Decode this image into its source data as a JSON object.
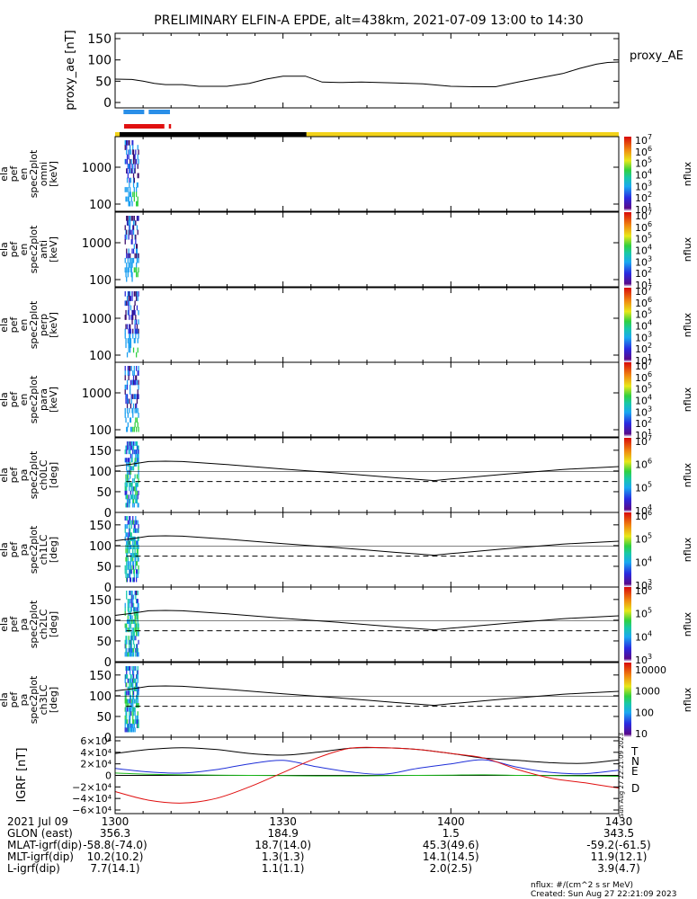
{
  "title": "PRELIMINARY ELFIN-A EPDE, alt=438km, 2021-07-09 13:00 to 14:30",
  "colors": {
    "day": "#f2d21a",
    "night": "#000000",
    "ibo_blue": "#2a8fe8",
    "ibo_red": "#e01010",
    "igrf_T": "#000000",
    "igrf_N": "#1f2fd8",
    "igrf_E": "#18b818",
    "igrf_D": "#e01010"
  },
  "colorbar_unit": "nflux",
  "footer": {
    "note1": "nflux: #/(cm^2 s sr MeV)",
    "note2": "Created: Sun Aug 27 22:21:09 2023",
    "vertical_stamp": "Sun Aug 27 22:21:09 2023"
  },
  "time_axis": {
    "ticks": [
      "1300",
      "1330",
      "1400",
      "1430"
    ],
    "rows": [
      {
        "label": "2021 Jul 09",
        "values": [
          "",
          "",
          "",
          ""
        ]
      },
      {
        "label": "GLON (east)",
        "values": [
          "356.3",
          "184.9",
          "1.5",
          "343.5"
        ]
      },
      {
        "label": "MLAT-igrf(dip)",
        "values": [
          "-58.8(-74.0)",
          "18.7(14.0)",
          "45.3(49.6)",
          "-59.2(-61.5)"
        ]
      },
      {
        "label": "MLT-igrf(dip)",
        "values": [
          "10.2(10.2)",
          "1.3(1.3)",
          "14.1(14.5)",
          "11.9(12.1)"
        ]
      },
      {
        "label": "L-igrf(dip)",
        "values": [
          "7.7(14.1)",
          "1.1(1.1)",
          "2.0(2.5)",
          "3.9(4.7)"
        ]
      }
    ]
  },
  "chart_data": [
    {
      "type": "line",
      "ylabel": "proxy_ae [nT]",
      "legend": "proxy_AE",
      "x_range_min": [
        0,
        90
      ],
      "ylim": [
        0,
        150
      ],
      "yticks": [
        "0",
        "50",
        "100",
        "150"
      ],
      "x_min": [
        0,
        3,
        5,
        7,
        9,
        12,
        15,
        20,
        24,
        27,
        30,
        34,
        37,
        40,
        44,
        50,
        55,
        60,
        64,
        68,
        72,
        76,
        80,
        83,
        86,
        88,
        90
      ],
      "y_nT": [
        55,
        54,
        50,
        45,
        42,
        42,
        38,
        38,
        45,
        55,
        62,
        62,
        48,
        47,
        48,
        46,
        44,
        38,
        37,
        37,
        48,
        58,
        68,
        80,
        90,
        94,
        95
      ]
    },
    {
      "type": "bar",
      "name": "ibo/obo indicators and day-night bar",
      "segments_min": [
        {
          "kind": "blue",
          "start": 1.5,
          "end": 5.2
        },
        {
          "kind": "blue",
          "start": 6.0,
          "end": 9.8
        },
        {
          "kind": "red",
          "start": 1.6,
          "end": 8.8
        },
        {
          "kind": "red",
          "start": 9.6,
          "end": 10.0
        },
        {
          "kind": "day",
          "start": 0,
          "end": 0.8
        },
        {
          "kind": "night",
          "start": 0.8,
          "end": 34.2
        },
        {
          "kind": "day",
          "start": 34.2,
          "end": 90
        }
      ]
    },
    {
      "type": "heatmap",
      "panels": [
        {
          "labels": [
            "ela",
            "pef",
            "en",
            "spec2plot",
            "omni",
            "[keV]"
          ],
          "yticks": [
            "100",
            "1000"
          ],
          "cb_exps": [
            "1",
            "2",
            "3",
            "4",
            "5",
            "6",
            "7"
          ],
          "cb_base": "10",
          "cb_extra": []
        },
        {
          "labels": [
            "ela",
            "pef",
            "en",
            "spec2plot",
            "anti",
            "[keV]"
          ],
          "yticks": [
            "100",
            "1000"
          ],
          "cb_exps": [
            "1",
            "2",
            "3",
            "4",
            "5",
            "6",
            "7"
          ],
          "cb_base": "10",
          "cb_extra": []
        },
        {
          "labels": [
            "ela",
            "pef",
            "en",
            "spec2plot",
            "perp",
            "[keV]"
          ],
          "yticks": [
            "100",
            "1000"
          ],
          "cb_exps": [
            "1",
            "2",
            "3",
            "4",
            "5",
            "6",
            "7"
          ],
          "cb_base": "10",
          "cb_extra": []
        },
        {
          "labels": [
            "ela",
            "pef",
            "en",
            "spec2plot",
            "para",
            "[keV]"
          ],
          "yticks": [
            "100",
            "1000"
          ],
          "cb_exps": [
            "1",
            "2",
            "3",
            "4",
            "5",
            "6",
            "7"
          ],
          "cb_base": "10",
          "cb_extra": []
        },
        {
          "labels": [
            "ela",
            "pef",
            "pa",
            "spec2plot",
            "ch0LC",
            "[deg]"
          ],
          "yticks": [
            "0",
            "50",
            "100",
            "150"
          ],
          "cb_exps": [
            "4",
            "5",
            "6",
            "7"
          ],
          "cb_base": "10",
          "cb_extra": []
        },
        {
          "labels": [
            "ela",
            "pef",
            "pa",
            "spec2plot",
            "ch1LC",
            "[deg]"
          ],
          "yticks": [
            "0",
            "50",
            "100",
            "150"
          ],
          "cb_exps": [
            "3",
            "4",
            "5",
            "6"
          ],
          "cb_base": "10",
          "cb_extra": []
        },
        {
          "labels": [
            "ela",
            "pef",
            "pa",
            "spec2plot",
            "ch2LC",
            "[deg]"
          ],
          "yticks": [
            "0",
            "50",
            "100",
            "150"
          ],
          "cb_exps": [
            "3",
            "4",
            "5",
            "6"
          ],
          "cb_base": "10",
          "cb_extra": []
        },
        {
          "labels": [
            "ela",
            "pef",
            "pa",
            "spec2plot",
            "ch3LC",
            "[deg]"
          ],
          "yticks": [
            "0",
            "50",
            "100",
            "150"
          ],
          "cb_exps": [],
          "cb_base": "",
          "cb_extra": [
            "10000",
            "1000",
            "100",
            "10"
          ]
        }
      ],
      "loss_cone": {
        "x_min": [
          0,
          3,
          6,
          9,
          12,
          20,
          30,
          40,
          50,
          57,
          60,
          70,
          80,
          90
        ],
        "deg": [
          103,
          108,
          114,
          115,
          114,
          107,
          96,
          86,
          75,
          68,
          72,
          84,
          95,
          102
        ]
      },
      "anti_loss_cone_deg": 66
    },
    {
      "type": "line",
      "ylabel": "IGRF [nT]",
      "ylim": [
        -60000,
        60000
      ],
      "yticks": [
        "6×10⁴",
        "4×10⁴",
        "2×10⁴",
        "0",
        "−2×10⁴",
        "−4×10⁴",
        "−6×10⁴"
      ],
      "x_min": [
        0,
        6,
        12,
        18,
        24,
        30,
        36,
        42,
        48,
        54,
        60,
        66,
        72,
        78,
        84,
        90
      ],
      "series": [
        {
          "name": "T",
          "values": [
            38000,
            45000,
            48000,
            45000,
            38000,
            35000,
            40000,
            47000,
            48000,
            45000,
            38000,
            30000,
            26000,
            22000,
            21000,
            27000
          ]
        },
        {
          "name": "N",
          "values": [
            12000,
            6000,
            4000,
            10000,
            20000,
            26000,
            15000,
            6000,
            2000,
            12000,
            20000,
            27000,
            14000,
            5000,
            3000,
            9000
          ]
        },
        {
          "name": "E",
          "values": [
            4000,
            2000,
            1000,
            500,
            0,
            -500,
            -1000,
            -1000,
            -500,
            0,
            500,
            1000,
            0,
            -500,
            -1000,
            -1500
          ]
        },
        {
          "name": "D",
          "values": [
            -28000,
            -43000,
            -48000,
            -40000,
            -20000,
            5000,
            30000,
            47000,
            48000,
            45000,
            38000,
            30000,
            10000,
            -5000,
            -13000,
            -22000
          ]
        }
      ]
    }
  ]
}
